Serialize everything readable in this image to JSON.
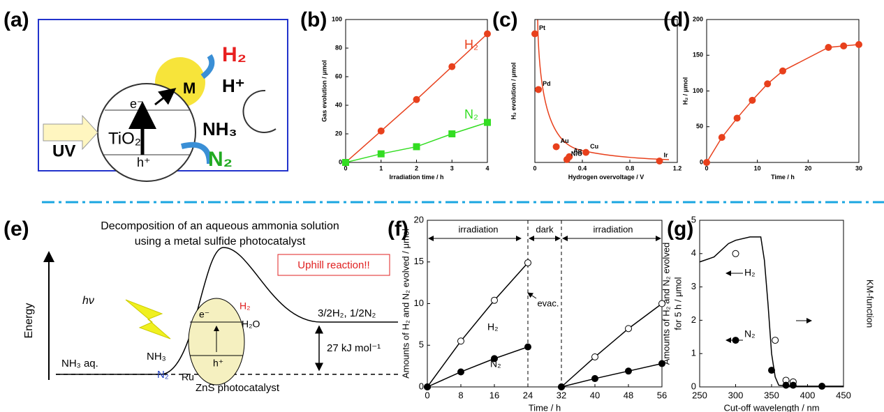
{
  "panels": [
    "(a)",
    "(b)",
    "(c)",
    "(d)",
    "(e)",
    "(f)",
    "(g)"
  ],
  "diagram_a": {
    "uv": "UV",
    "tio2": "TiO₂",
    "e": "e⁻",
    "h": "h⁺",
    "m": "M",
    "h2": "H₂",
    "hplus": "H⁺",
    "nh3": "NH₃",
    "n2": "N₂"
  },
  "diagram_e": {
    "title": [
      "Decomposition of an aqueous ammonia solution",
      "using a metal sulfide photocatalyst"
    ],
    "energy": "Energy",
    "hv": "hν",
    "uphill": "Uphill reaction!!",
    "e": "e⁻",
    "h2": "H₂",
    "h2o": "H₂O",
    "h": "h⁺",
    "nh3": "NH₃",
    "n2": "N₂",
    "ru": "Ru",
    "zns": "ZnS photocatalyst",
    "nh3aq": "NH₃ aq.",
    "products": "3/2H₂, 1/2N₂",
    "delta": "27 kJ mol⁻¹"
  },
  "chart_data": [
    {
      "type": "line",
      "x": [
        0,
        1,
        2,
        3,
        4
      ],
      "series": [
        {
          "name": "H₂",
          "color": "#e8401c",
          "marker": "circle",
          "values": [
            0,
            22,
            44,
            67,
            90
          ]
        },
        {
          "name": "N₂",
          "color": "#33dd22",
          "marker": "square",
          "values": [
            0,
            6,
            11,
            20,
            28
          ]
        }
      ],
      "xlim": [
        0,
        4
      ],
      "ylim": [
        0,
        100
      ],
      "xticks": [
        0,
        1,
        2,
        3,
        4
      ],
      "yticks": [
        0,
        20,
        40,
        60,
        80,
        100
      ],
      "xlabel": "Irradiation time / h",
      "ylabel": "Gas evolution / μmol"
    },
    {
      "type": "scatter",
      "categories": [
        "Pt",
        "Pd",
        "Au",
        "NiO",
        "Ag",
        "Cu",
        "Ir"
      ],
      "x": [
        0.0,
        0.03,
        0.18,
        0.27,
        0.29,
        0.43,
        1.05
      ],
      "values": [
        90,
        51,
        11,
        2,
        4,
        7,
        1
      ],
      "color": "#e8401c",
      "xlim": [
        0,
        1.2
      ],
      "ylim": [
        0,
        100
      ],
      "xticks": [
        0,
        0.4,
        0.8,
        1.2
      ],
      "xlabel": "Hydrogen overvoltage / V",
      "ylabel": "H₂ evolution / μmol"
    },
    {
      "type": "line",
      "x": [
        0,
        3,
        6,
        9,
        12,
        15,
        24,
        27,
        30
      ],
      "values": [
        0,
        35,
        62,
        87,
        110,
        128,
        161,
        163,
        165
      ],
      "color": "#e8401c",
      "marker": "circle",
      "xlim": [
        0,
        30
      ],
      "ylim": [
        0,
        200
      ],
      "xticks": [
        0,
        10,
        20,
        30
      ],
      "yticks": [
        0,
        50,
        100,
        150,
        200
      ],
      "xlabel": "Time / h",
      "ylabel": "H₂ / μmol"
    },
    {
      "type": "line",
      "x": [
        0,
        8,
        16,
        24,
        24,
        32,
        40,
        48,
        56
      ],
      "series": [
        {
          "name": "H₂",
          "color": "#000000",
          "marker": "open",
          "values": [
            0,
            5.5,
            10.4,
            14.9,
            null,
            0,
            3.6,
            7,
            10
          ]
        },
        {
          "name": "N₂",
          "color": "#000000",
          "marker": "filled",
          "values": [
            0,
            1.8,
            3.4,
            4.8,
            null,
            0,
            1,
            1.9,
            2.8
          ]
        }
      ],
      "dividers": [
        24,
        32
      ],
      "annotations": [
        "irradiation",
        "dark",
        "irradiation",
        "evac."
      ],
      "xlim": [
        0,
        56
      ],
      "ylim": [
        0,
        20
      ],
      "xticks": [
        0,
        8,
        16,
        24,
        32,
        40,
        48,
        56
      ],
      "yticks": [
        0,
        5,
        10,
        15,
        20
      ],
      "xlabel": "Time / h",
      "ylabel": "Amounts of H₂ and N₂ evolved / μmol"
    },
    {
      "type": "scatter",
      "series": [
        {
          "name": "H₂",
          "color": "#000000",
          "marker": "open",
          "x": [
            300,
            355,
            370,
            380
          ],
          "values": [
            4.0,
            1.4,
            0.2,
            0.15
          ]
        },
        {
          "name": "N₂",
          "color": "#000000",
          "marker": "filled",
          "x": [
            300,
            350,
            370,
            380,
            420
          ],
          "values": [
            1.4,
            0.5,
            0.05,
            0.05,
            0.02
          ]
        },
        {
          "name": "KM-function",
          "color": "#000000",
          "axis": "y2",
          "x": [
            250,
            270,
            290,
            300,
            320,
            335,
            340,
            345,
            350,
            355,
            360,
            380,
            450
          ],
          "values": [
            3.75,
            3.9,
            4.3,
            4.4,
            4.5,
            4.5,
            3.8,
            2.5,
            1.0,
            0.3,
            0.05,
            0.02,
            0.02
          ]
        }
      ],
      "xlim": [
        250,
        450
      ],
      "ylim": [
        0,
        5
      ],
      "y2lim": [
        0,
        5
      ],
      "xticks": [
        250,
        300,
        350,
        400,
        450
      ],
      "yticks": [
        0,
        1,
        2,
        3,
        4,
        5
      ],
      "xlabel": "Cut-off wavelength / nm",
      "ylabel": [
        "Amounts of H₂ and N₂ evolved",
        "for 5 h / μmol"
      ],
      "y2label": "KM-function"
    }
  ]
}
